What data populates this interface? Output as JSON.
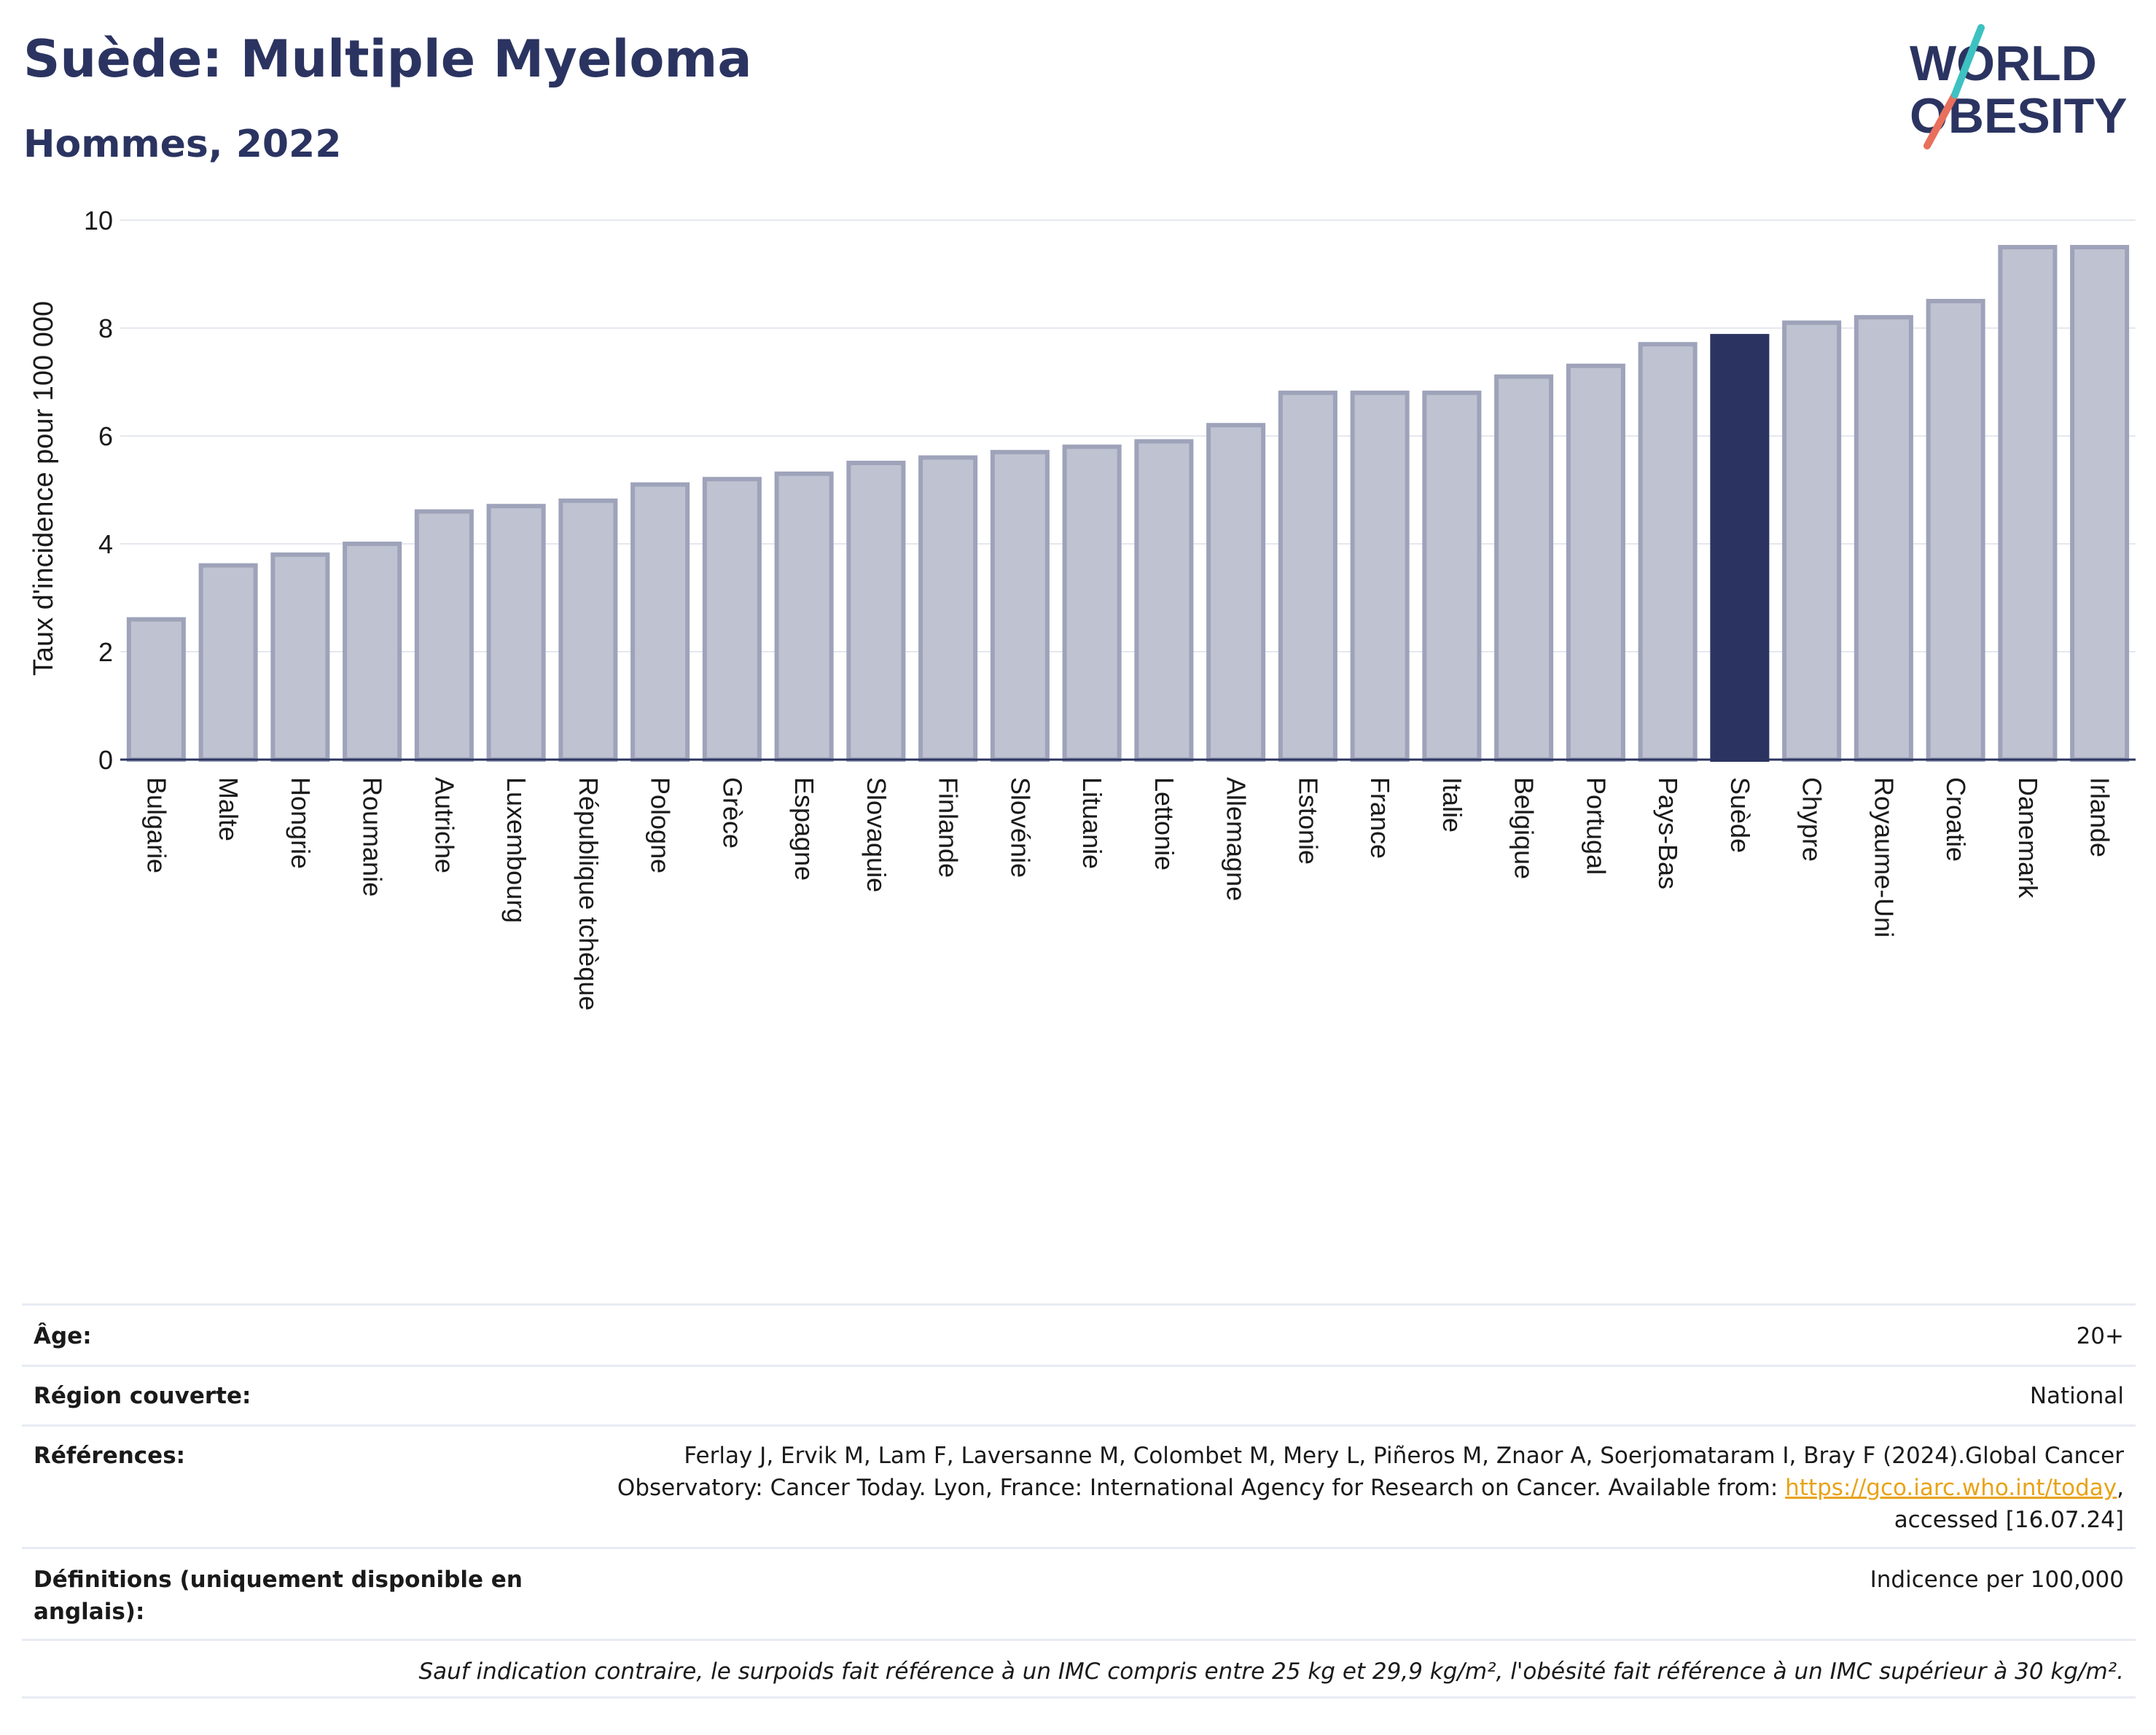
{
  "header": {
    "title": "Suède: Multiple Myeloma",
    "subtitle": "Hommes, 2022",
    "logo_line1": "WORLD",
    "logo_line2": "OBESITY"
  },
  "chart_data": {
    "type": "bar",
    "ylabel": "Taux d'incidence pour 100 000",
    "ylim": [
      0,
      10
    ],
    "yticks": [
      0,
      2,
      4,
      6,
      8,
      10
    ],
    "grid": true,
    "highlight": "Suède",
    "categories": [
      "Bulgarie",
      "Malte",
      "Hongrie",
      "Roumanie",
      "Autriche",
      "Luxembourg",
      "République tchèque",
      "Pologne",
      "Grèce",
      "Espagne",
      "Slovaquie",
      "Finlande",
      "Slovénie",
      "Lituanie",
      "Lettonie",
      "Allemagne",
      "Estonie",
      "France",
      "Italie",
      "Belgique",
      "Portugal",
      "Pays-Bas",
      "Suède",
      "Chypre",
      "Royaume-Uni",
      "Croatie",
      "Danemark",
      "Irlande"
    ],
    "values": [
      2.6,
      3.6,
      3.8,
      4.0,
      4.6,
      4.7,
      4.8,
      5.1,
      5.2,
      5.3,
      5.5,
      5.6,
      5.7,
      5.8,
      5.9,
      6.2,
      6.8,
      6.8,
      6.8,
      7.1,
      7.3,
      7.7,
      7.85,
      8.1,
      8.2,
      8.5,
      9.5,
      9.5
    ],
    "colors": {
      "bar": "#bfc2d0",
      "bar_border": "#9ea3ba",
      "highlight": "#2b3461",
      "axis": "#2b3461",
      "grid": "#e6e8ef"
    }
  },
  "info": {
    "age_label": "Âge:",
    "age_value": "20+",
    "region_label": "Région couverte:",
    "region_value": "National",
    "ref_label": "Références:",
    "ref_text1": "Ferlay J, Ervik M, Lam F, Laversanne M, Colombet M, Mery L, Piñeros M, Znaor A, Soerjomataram I, Bray F (2024).Global Cancer",
    "ref_text2": "Observatory: Cancer Today. Lyon, France: International Agency for Research on Cancer. Available from: ",
    "ref_link": "https://gco.iarc.who.int/today",
    "ref_text3": ",",
    "ref_text4": "accessed [16.07.24]",
    "def_label": "Définitions (uniquement disponible en anglais):",
    "def_value": "Indicence per 100,000",
    "footnote": "Sauf indication contraire, le surpoids fait référence à un IMC compris entre 25 kg et 29,9 kg/m², l'obésité fait référence à un IMC supérieur à 30 kg/m²."
  }
}
